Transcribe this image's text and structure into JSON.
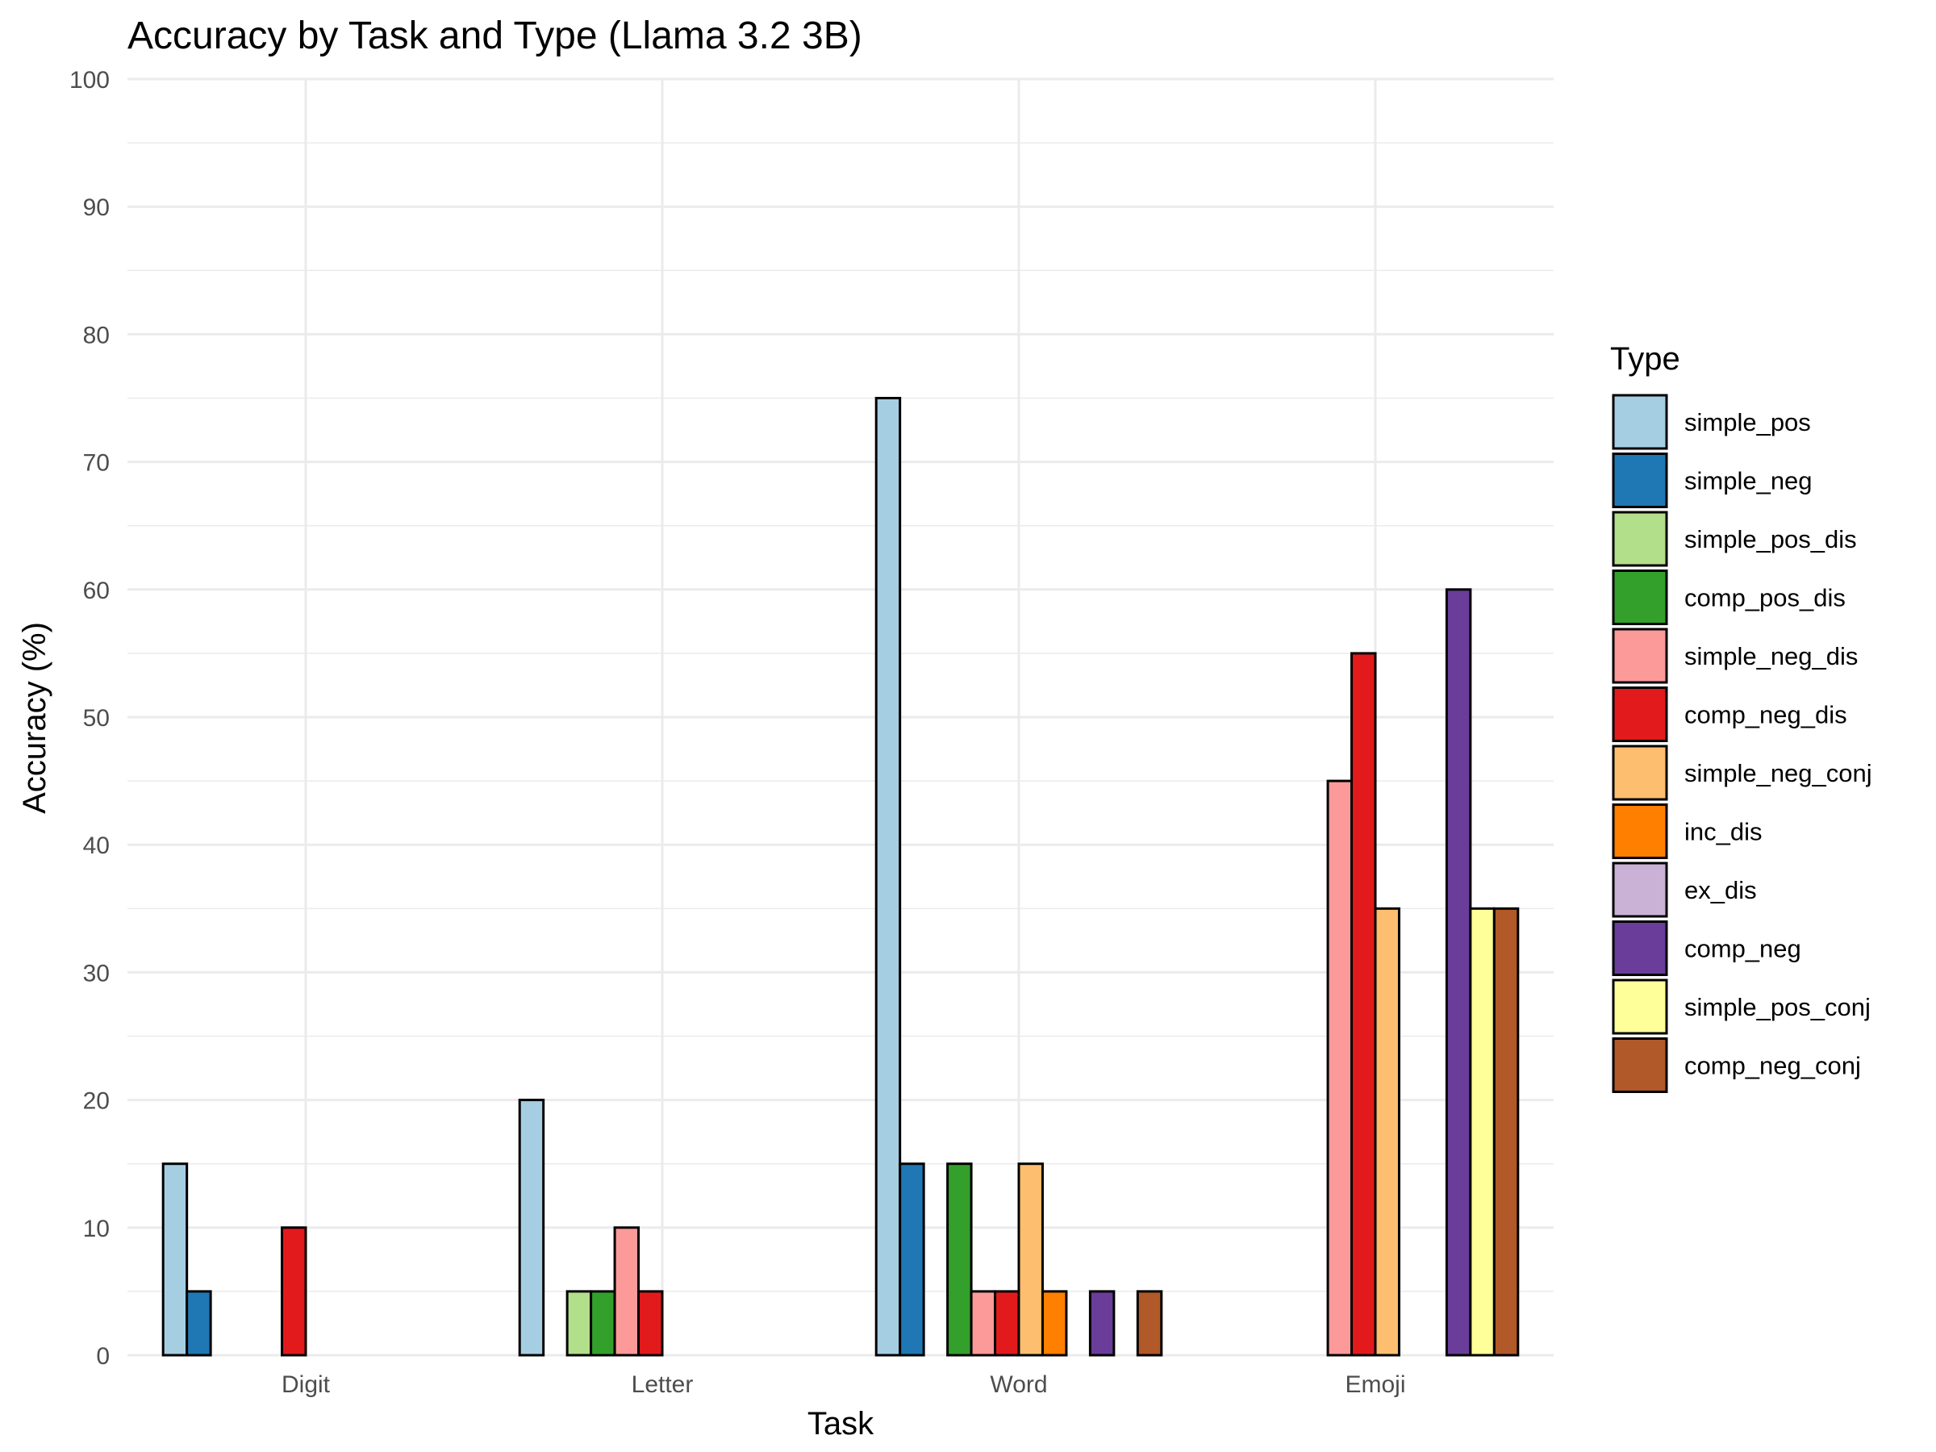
{
  "chart_data": {
    "type": "bar",
    "title": "Accuracy by Task and Type (Llama 3.2 3B)",
    "xlabel": "Task",
    "ylabel": "Accuracy (%)",
    "ylim": [
      0,
      100
    ],
    "yticks": [
      0,
      10,
      20,
      30,
      40,
      50,
      60,
      70,
      80,
      90,
      100
    ],
    "grid": true,
    "legend_title": "Type",
    "legend_position": "right",
    "categories": [
      "Digit",
      "Letter",
      "Word",
      "Emoji"
    ],
    "series": [
      {
        "name": "simple_pos",
        "color": "#A6CEE3",
        "values": [
          15,
          20,
          75,
          0
        ]
      },
      {
        "name": "simple_neg",
        "color": "#1F78B4",
        "values": [
          5,
          0,
          15,
          0
        ]
      },
      {
        "name": "simple_pos_dis",
        "color": "#B2DF8A",
        "values": [
          0,
          5,
          0,
          0
        ]
      },
      {
        "name": "comp_pos_dis",
        "color": "#33A02C",
        "values": [
          0,
          5,
          15,
          0
        ]
      },
      {
        "name": "simple_neg_dis",
        "color": "#FB9A99",
        "values": [
          0,
          10,
          5,
          45
        ]
      },
      {
        "name": "comp_neg_dis",
        "color": "#E31A1C",
        "values": [
          10,
          5,
          5,
          55
        ]
      },
      {
        "name": "simple_neg_conj",
        "color": "#FDBF6F",
        "values": [
          0,
          0,
          15,
          35
        ]
      },
      {
        "name": "inc_dis",
        "color": "#FF7F00",
        "values": [
          0,
          0,
          5,
          0
        ]
      },
      {
        "name": "ex_dis",
        "color": "#CAB2D6",
        "values": [
          0,
          0,
          0,
          0
        ]
      },
      {
        "name": "comp_neg",
        "color": "#6A3D9A",
        "values": [
          0,
          0,
          5,
          60
        ]
      },
      {
        "name": "simple_pos_conj",
        "color": "#FFFF99",
        "values": [
          0,
          0,
          0,
          35
        ]
      },
      {
        "name": "comp_neg_conj",
        "color": "#B15928",
        "values": [
          0,
          0,
          5,
          35
        ]
      }
    ]
  }
}
